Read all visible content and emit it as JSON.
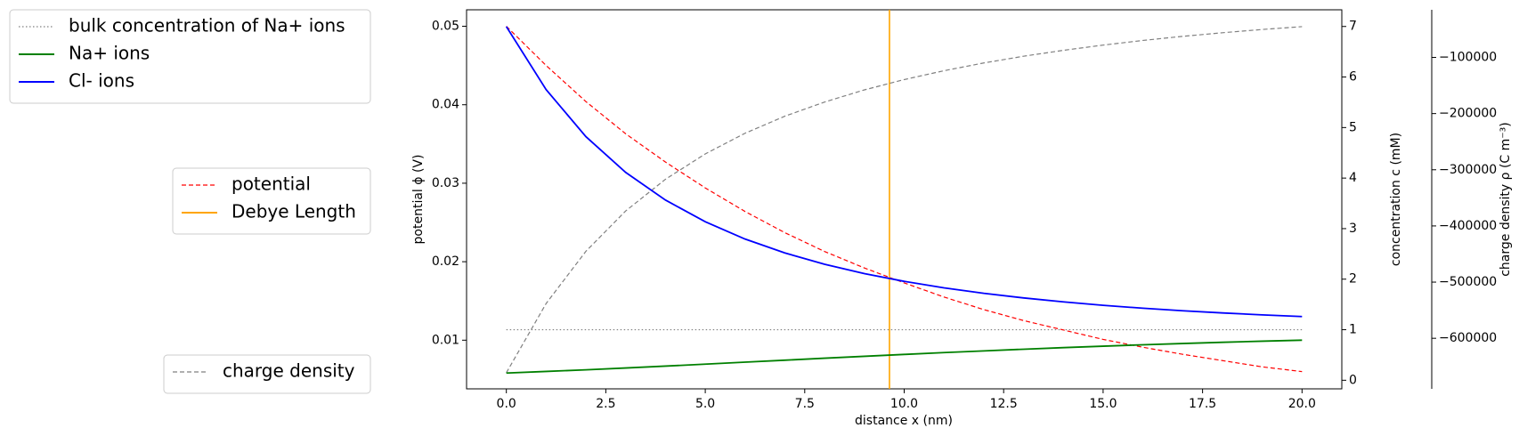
{
  "chart_data": {
    "type": "line",
    "xlabel": "distance x (nm)",
    "ylabel": "potential ϕ (V)",
    "y2label": "concentration c (mM)",
    "y3label": "charge density ρ (C m⁻³)",
    "x": [
      0,
      1,
      2,
      3,
      4,
      5,
      6,
      7,
      8,
      9,
      10,
      11,
      12,
      13,
      14,
      15,
      16,
      17,
      18,
      19,
      20
    ],
    "xlim": [
      -1.0,
      21.0
    ],
    "xticks": [
      {
        "value": 0,
        "label": "0.0"
      },
      {
        "value": 2.5,
        "label": "2.5"
      },
      {
        "value": 5,
        "label": "5.0"
      },
      {
        "value": 7.5,
        "label": "7.5"
      },
      {
        "value": 10,
        "label": "10.0"
      },
      {
        "value": 12.5,
        "label": "12.5"
      },
      {
        "value": 15,
        "label": "15.0"
      },
      {
        "value": 17.5,
        "label": "17.5"
      },
      {
        "value": 20,
        "label": "20.0"
      }
    ],
    "ylim": [
      0.0038,
      0.0521
    ],
    "yticks": [
      0.01,
      0.02,
      0.03,
      0.04,
      0.05
    ],
    "y2lim": [
      -0.17,
      7.33
    ],
    "y2ticks": [
      0,
      1,
      2,
      3,
      4,
      5,
      6,
      7
    ],
    "y3lim": [
      -690000,
      -15230
    ],
    "y3ticks": [
      {
        "value": -100000,
        "label": "−100000"
      },
      {
        "value": -200000,
        "label": "−200000"
      },
      {
        "value": -300000,
        "label": "−300000"
      },
      {
        "value": -400000,
        "label": "−400000"
      },
      {
        "value": -500000,
        "label": "−500000"
      },
      {
        "value": -600000,
        "label": "−600000"
      }
    ],
    "grid": false,
    "series": [
      {
        "name": "bulk concentration of Na+ ions",
        "color": "gray",
        "linestyle": "dotted",
        "axis": "y2",
        "legend": 0,
        "values": [
          1.0,
          1.0,
          1.0,
          1.0,
          1.0,
          1.0,
          1.0,
          1.0,
          1.0,
          1.0,
          1.0,
          1.0,
          1.0,
          1.0,
          1.0,
          1.0,
          1.0,
          1.0,
          1.0,
          1.0,
          1.0
        ]
      },
      {
        "name": "Na+ ions",
        "color": "green",
        "linestyle": "solid",
        "axis": "y2",
        "legend": 0,
        "values": [
          0.143,
          0.174,
          0.207,
          0.243,
          0.28,
          0.319,
          0.358,
          0.397,
          0.436,
          0.474,
          0.511,
          0.547,
          0.581,
          0.614,
          0.645,
          0.674,
          0.702,
          0.727,
          0.751,
          0.773,
          0.793
        ]
      },
      {
        "name": "Cl- ions",
        "color": "blue",
        "linestyle": "solid",
        "axis": "y2",
        "legend": 0,
        "values": [
          6.998,
          5.751,
          4.82,
          4.112,
          3.565,
          3.136,
          2.794,
          2.519,
          2.295,
          2.11,
          1.957,
          1.829,
          1.72,
          1.629,
          1.551,
          1.483,
          1.425,
          1.375,
          1.332,
          1.294,
          1.261
        ]
      },
      {
        "name": "potential",
        "color": "red",
        "linestyle": "dashed",
        "axis": "y",
        "legend": 1,
        "values": [
          0.05,
          0.045,
          0.0404,
          0.0363,
          0.0327,
          0.0294,
          0.0264,
          0.0237,
          0.0213,
          0.0192,
          0.0173,
          0.0155,
          0.0139,
          0.0125,
          0.0113,
          0.0101,
          0.0091,
          0.0082,
          0.0074,
          0.0066,
          0.006
        ]
      },
      {
        "name": "Debye Length",
        "color": "orange",
        "linestyle": "solid",
        "kind": "vline",
        "legend": 1,
        "xvalue": 9.63
      },
      {
        "name": "charge density",
        "color": "gray",
        "linestyle": "dashed",
        "axis": "y3",
        "legend": 2,
        "values": [
          -661400,
          -538100,
          -445100,
          -373300,
          -316900,
          -271800,
          -235000,
          -204700,
          -179400,
          -157800,
          -139500,
          -123700,
          -109900,
          -97900,
          -87400,
          -78100,
          -69800,
          -62500,
          -56100,
          -50300,
          -45200
        ]
      }
    ]
  }
}
